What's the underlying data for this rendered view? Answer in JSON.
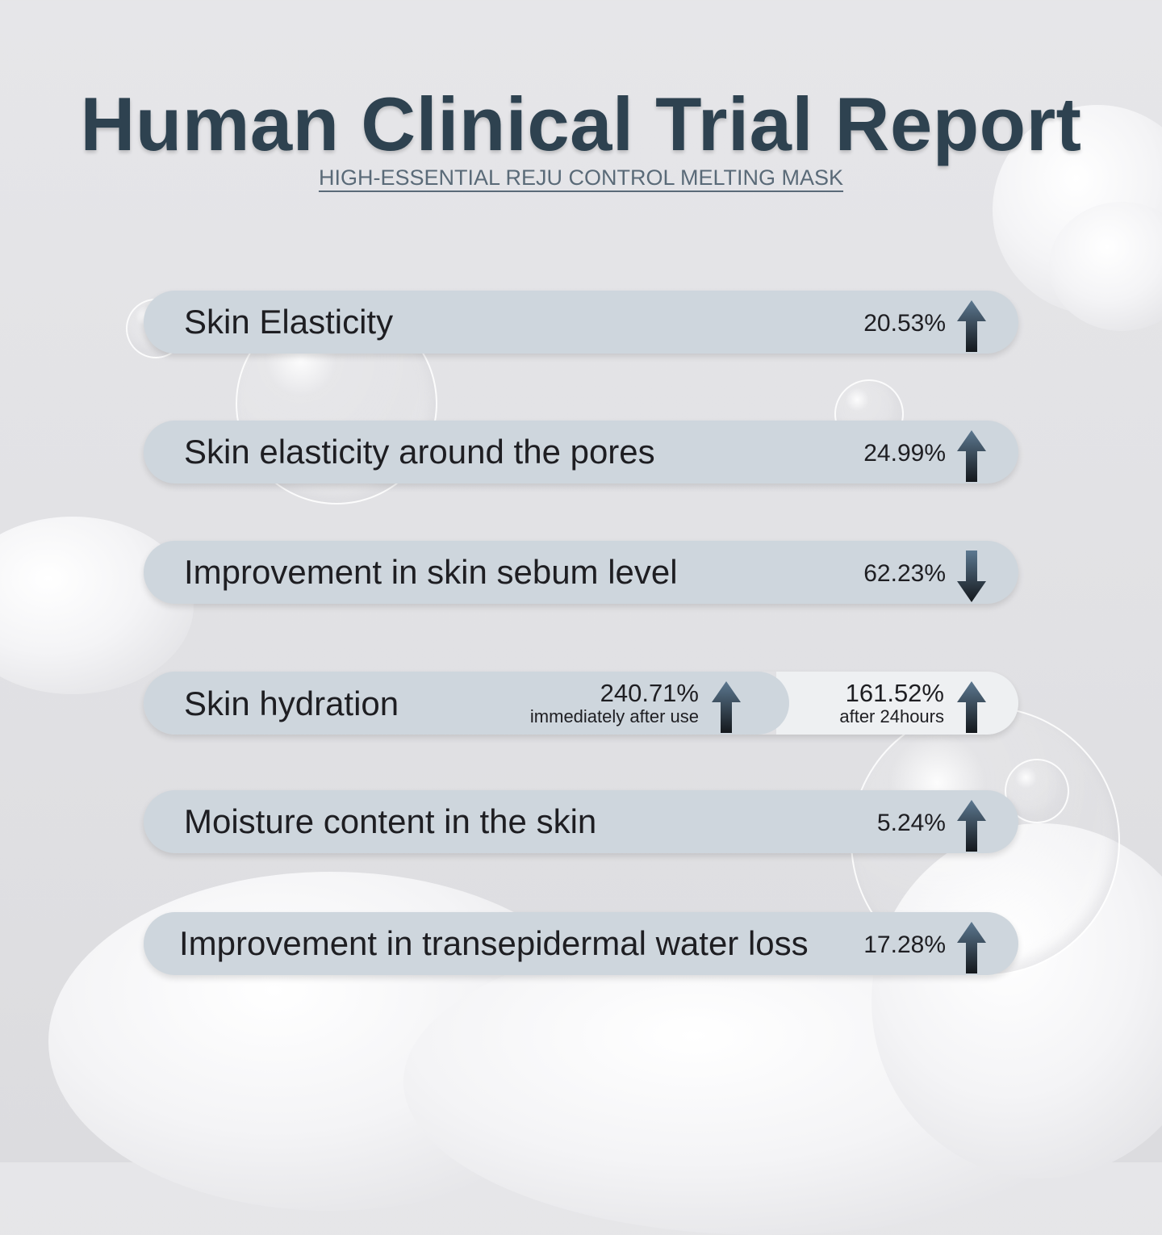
{
  "title": "Human Clinical Trial Report",
  "subtitle": "HIGH-ESSENTIAL REJU CONTROL  MELTING MASK",
  "metrics": [
    {
      "label": "Skin Elasticity",
      "value": "20.53%",
      "direction": "up-arrow-icon"
    },
    {
      "label": "Skin elasticity around the pores",
      "value": "24.99%",
      "direction": "up-arrow-icon"
    },
    {
      "label": "Improvement in skin sebum level",
      "value": "62.23%",
      "direction": "down-arrow-icon"
    },
    {
      "label": "Moisture content in the skin",
      "value": "5.24%",
      "direction": "up-arrow-icon"
    },
    {
      "label": "Improvement in transepidermal water loss",
      "value": "17.28%",
      "direction": "up-arrow-icon"
    }
  ],
  "hydration": {
    "label": "Skin hydration",
    "immediate": {
      "value": "240.71%",
      "note": "immediately after use"
    },
    "after24": {
      "value": "161.52%",
      "note": "after 24hours"
    }
  },
  "colors": {
    "title": "#2e4250",
    "pill": "#ced6dd",
    "pill_light": "#eef0f2",
    "arrow_top": "#5c7890",
    "arrow_bottom": "#14181c"
  }
}
